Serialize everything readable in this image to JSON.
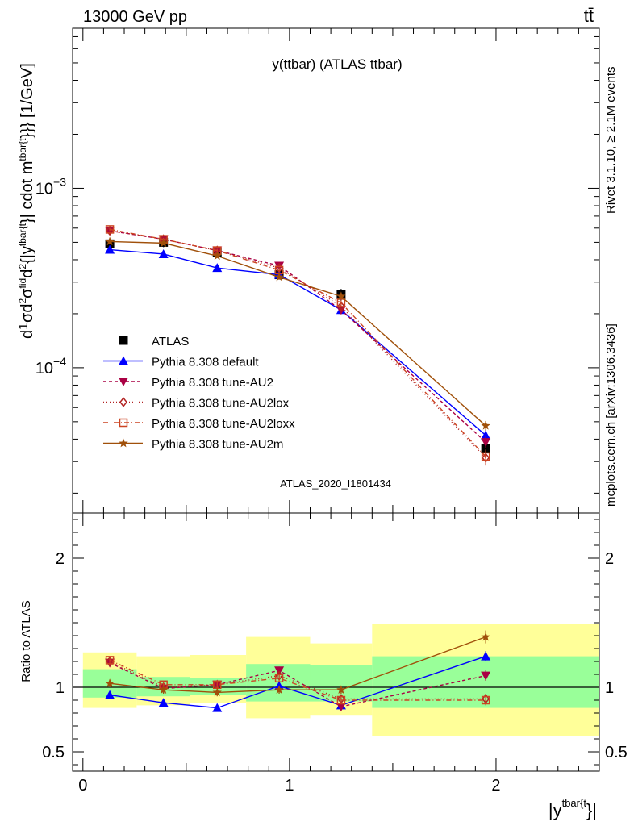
{
  "header": {
    "left": "13000 GeV pp",
    "right": "tt̄"
  },
  "side_labels": {
    "rivet": "Rivet 3.1.10, ≥ 2.1M events",
    "mcplots": "mcplots.cern.ch [arXiv:1306.3436]"
  },
  "chart_data": [
    {
      "type": "line",
      "title": "y(ttbar) (ATLAS ttbar)",
      "watermark": "ATLAS_2020_I1801434",
      "ylabel_parts": {
        "d": "d",
        "one": "1",
        "sigma": "σ",
        "d2": "d",
        "sup2": "2",
        "sigma_fid": "σ",
        "fid": "fid",
        "d_denom": "d",
        "sup2b": "2",
        "y_open": "{|y",
        "tbar_sub": "tbar{t",
        "close1": "}|",
        "cdot": " cdot m",
        "tbar_sup": "tbar{t",
        "close2": "}}} [1/GeV]"
      },
      "yscale": "log",
      "xlim": [
        -0.05,
        2.5
      ],
      "ylim": [
        1.55e-05,
        0.0078
      ],
      "yticks": [
        {
          "value": 0.001,
          "mant": "10",
          "exp": "−3"
        },
        {
          "value": 0.0001,
          "mant": "10",
          "exp": "−4"
        }
      ],
      "x": [
        0.13,
        0.39,
        0.65,
        0.95,
        1.25,
        1.95
      ],
      "series": [
        {
          "name": "ATLAS",
          "color": "#000000",
          "marker": "square",
          "dash": "none",
          "values": [
            0.00049,
            0.0005,
            0.00044,
            0.00033,
            0.000255,
            3.55e-05
          ],
          "err": [
            3e-05,
            3e-05,
            2e-05,
            2e-05,
            2e-05,
            3e-06
          ]
        },
        {
          "name": "Pythia 8.308 default",
          "color": "#0000ff",
          "marker": "triangle-up",
          "dash": "none",
          "values": [
            0.000455,
            0.00043,
            0.00036,
            0.00033,
            0.00021,
            4.2e-05
          ],
          "err": [
            1e-05,
            1e-05,
            1e-05,
            1e-05,
            8e-06,
            3e-06
          ]
        },
        {
          "name": "Pythia 8.308 tune-AU2",
          "color": "#aa0044",
          "marker": "triangle-down",
          "dash": "4,3",
          "values": [
            0.00058,
            0.00052,
            0.00045,
            0.00037,
            0.00021,
            3.85e-05
          ],
          "err": [
            1e-05,
            1e-05,
            1e-05,
            1e-05,
            8e-06,
            3e-06
          ]
        },
        {
          "name": "Pythia 8.308 tune-AU2lox",
          "color": "#b22222",
          "marker": "diamond-open",
          "dash": "1,3",
          "values": [
            0.00058,
            0.00052,
            0.00045,
            0.00036,
            0.00022,
            3.15e-05
          ],
          "err": [
            1e-05,
            1e-05,
            1e-05,
            1e-05,
            8e-06,
            3e-06
          ]
        },
        {
          "name": "Pythia 8.308 tune-AU2loxx",
          "color": "#cc4422",
          "marker": "square-open",
          "dash": "6,3,1,3",
          "values": [
            0.00059,
            0.00052,
            0.00045,
            0.00035,
            0.00023,
            3.2e-05
          ],
          "err": [
            1e-05,
            1e-05,
            1e-05,
            1e-05,
            8e-06,
            3e-06
          ]
        },
        {
          "name": "Pythia 8.308 tune-AU2m",
          "color": "#a0500a",
          "marker": "star",
          "dash": "none",
          "values": [
            0.000505,
            0.000495,
            0.00042,
            0.00032,
            0.00025,
            4.75e-05
          ],
          "err": [
            1e-05,
            1e-05,
            1e-05,
            1e-05,
            8e-06,
            3e-06
          ]
        }
      ],
      "legend_position": "bottom-left"
    },
    {
      "type": "line",
      "ylabel": "Ratio to ATLAS",
      "xlabel_parts": {
        "open": "|y",
        "sup": "tbar{t",
        "close": "}|"
      },
      "xlim": [
        -0.05,
        2.5
      ],
      "ylim": [
        0.35,
        2.35
      ],
      "yticks": [
        {
          "value": 0.5,
          "label": "0.5"
        },
        {
          "value": 1,
          "label": "1"
        },
        {
          "value": 2,
          "label": "2"
        }
      ],
      "xticks": [
        {
          "value": 0,
          "label": "0"
        },
        {
          "value": 1,
          "label": "1"
        },
        {
          "value": 2,
          "label": "2"
        }
      ],
      "bins": [
        {
          "lo": 0.0,
          "hi": 0.26,
          "green": [
            0.92,
            1.14
          ],
          "yellow": [
            0.84,
            1.27
          ]
        },
        {
          "lo": 0.26,
          "hi": 0.52,
          "green": [
            0.93,
            1.08
          ],
          "yellow": [
            0.86,
            1.24
          ]
        },
        {
          "lo": 0.52,
          "hi": 0.79,
          "green": [
            0.94,
            1.07
          ],
          "yellow": [
            0.88,
            1.25
          ]
        },
        {
          "lo": 0.79,
          "hi": 1.1,
          "green": [
            0.89,
            1.18
          ],
          "yellow": [
            0.76,
            1.39
          ]
        },
        {
          "lo": 1.1,
          "hi": 1.4,
          "green": [
            0.89,
            1.17
          ],
          "yellow": [
            0.78,
            1.34
          ]
        },
        {
          "lo": 1.4,
          "hi": 2.5,
          "green": [
            0.84,
            1.24
          ],
          "yellow": [
            0.62,
            1.49
          ]
        }
      ],
      "x": [
        0.13,
        0.39,
        0.65,
        0.95,
        1.25,
        1.95
      ],
      "series": [
        {
          "name": "Pythia 8.308 default",
          "values": [
            0.94,
            0.88,
            0.84,
            1.01,
            0.86,
            1.24
          ],
          "err": [
            0.03,
            0.03,
            0.03,
            0.03,
            0.03,
            0.04
          ]
        },
        {
          "name": "Pythia 8.308 tune-AU2",
          "values": [
            1.19,
            0.99,
            1.02,
            1.13,
            0.85,
            1.09
          ],
          "err": [
            0.03,
            0.03,
            0.03,
            0.03,
            0.03,
            0.04
          ]
        },
        {
          "name": "Pythia 8.308 tune-AU2lox",
          "values": [
            1.2,
            1.0,
            1.02,
            1.09,
            0.91,
            0.91
          ],
          "err": [
            0.03,
            0.03,
            0.03,
            0.03,
            0.03,
            0.04
          ]
        },
        {
          "name": "Pythia 8.308 tune-AU2loxx",
          "values": [
            1.21,
            1.02,
            1.02,
            1.07,
            0.9,
            0.9
          ],
          "err": [
            0.03,
            0.03,
            0.03,
            0.03,
            0.03,
            0.04
          ]
        },
        {
          "name": "Pythia 8.308 tune-AU2m",
          "values": [
            1.03,
            0.98,
            0.96,
            0.98,
            0.98,
            1.39
          ],
          "err": [
            0.03,
            0.03,
            0.03,
            0.03,
            0.03,
            0.05
          ]
        }
      ]
    }
  ]
}
